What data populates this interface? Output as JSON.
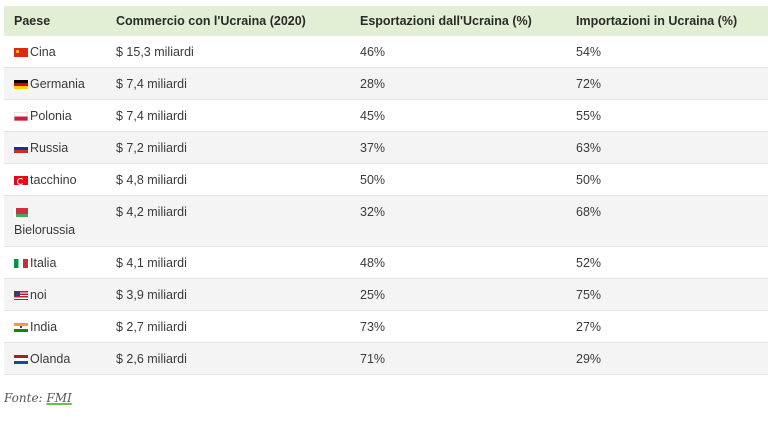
{
  "table": {
    "headers": [
      "Paese",
      "Commercio con l'Ucraina (2020)",
      "Esportazioni dall'Ucraina (%)",
      "Importazioni in Ucraina (%)"
    ],
    "rows": [
      {
        "flag_icon": "china-flag-icon",
        "country": "Cina",
        "trade": "$ 15,3 miliardi",
        "exports": "46%",
        "imports": "54%"
      },
      {
        "flag_icon": "germany-flag-icon",
        "country": "Germania",
        "trade": "$ 7,4 miliardi",
        "exports": "28%",
        "imports": "72%"
      },
      {
        "flag_icon": "poland-flag-icon",
        "country": "Polonia",
        "trade": "$ 7,4 miliardi",
        "exports": "45%",
        "imports": "55%"
      },
      {
        "flag_icon": "russia-flag-icon",
        "country": "Russia",
        "trade": "$ 7,2 miliardi",
        "exports": "37%",
        "imports": "63%"
      },
      {
        "flag_icon": "turkey-flag-icon",
        "country": "tacchino",
        "trade": "$ 4,8 miliardi",
        "exports": "50%",
        "imports": "50%"
      },
      {
        "flag_icon": "belarus-flag-icon",
        "country": "Bielorussia",
        "trade": "$ 4,2 miliardi",
        "exports": "32%",
        "imports": "68%"
      },
      {
        "flag_icon": "italy-flag-icon",
        "country": "Italia",
        "trade": "$ 4,1 miliardi",
        "exports": "48%",
        "imports": "52%"
      },
      {
        "flag_icon": "usa-flag-icon",
        "country": "noi",
        "trade": "$ 3,9 miliardi",
        "exports": "25%",
        "imports": "75%"
      },
      {
        "flag_icon": "india-flag-icon",
        "country": "India",
        "trade": "$ 2,7 miliardi",
        "exports": "73%",
        "imports": "27%"
      },
      {
        "flag_icon": "netherlands-flag-icon",
        "country": "Olanda",
        "trade": "$ 2,6 miliardi",
        "exports": "71%",
        "imports": "29%"
      }
    ]
  },
  "source": {
    "prefix": "Fonte:",
    "link_text": "FMI"
  },
  "colors": {
    "header_bg": "#e3efd4",
    "stripe_bg": "#f4f4f4",
    "link_underline": "#6cbf4a"
  }
}
